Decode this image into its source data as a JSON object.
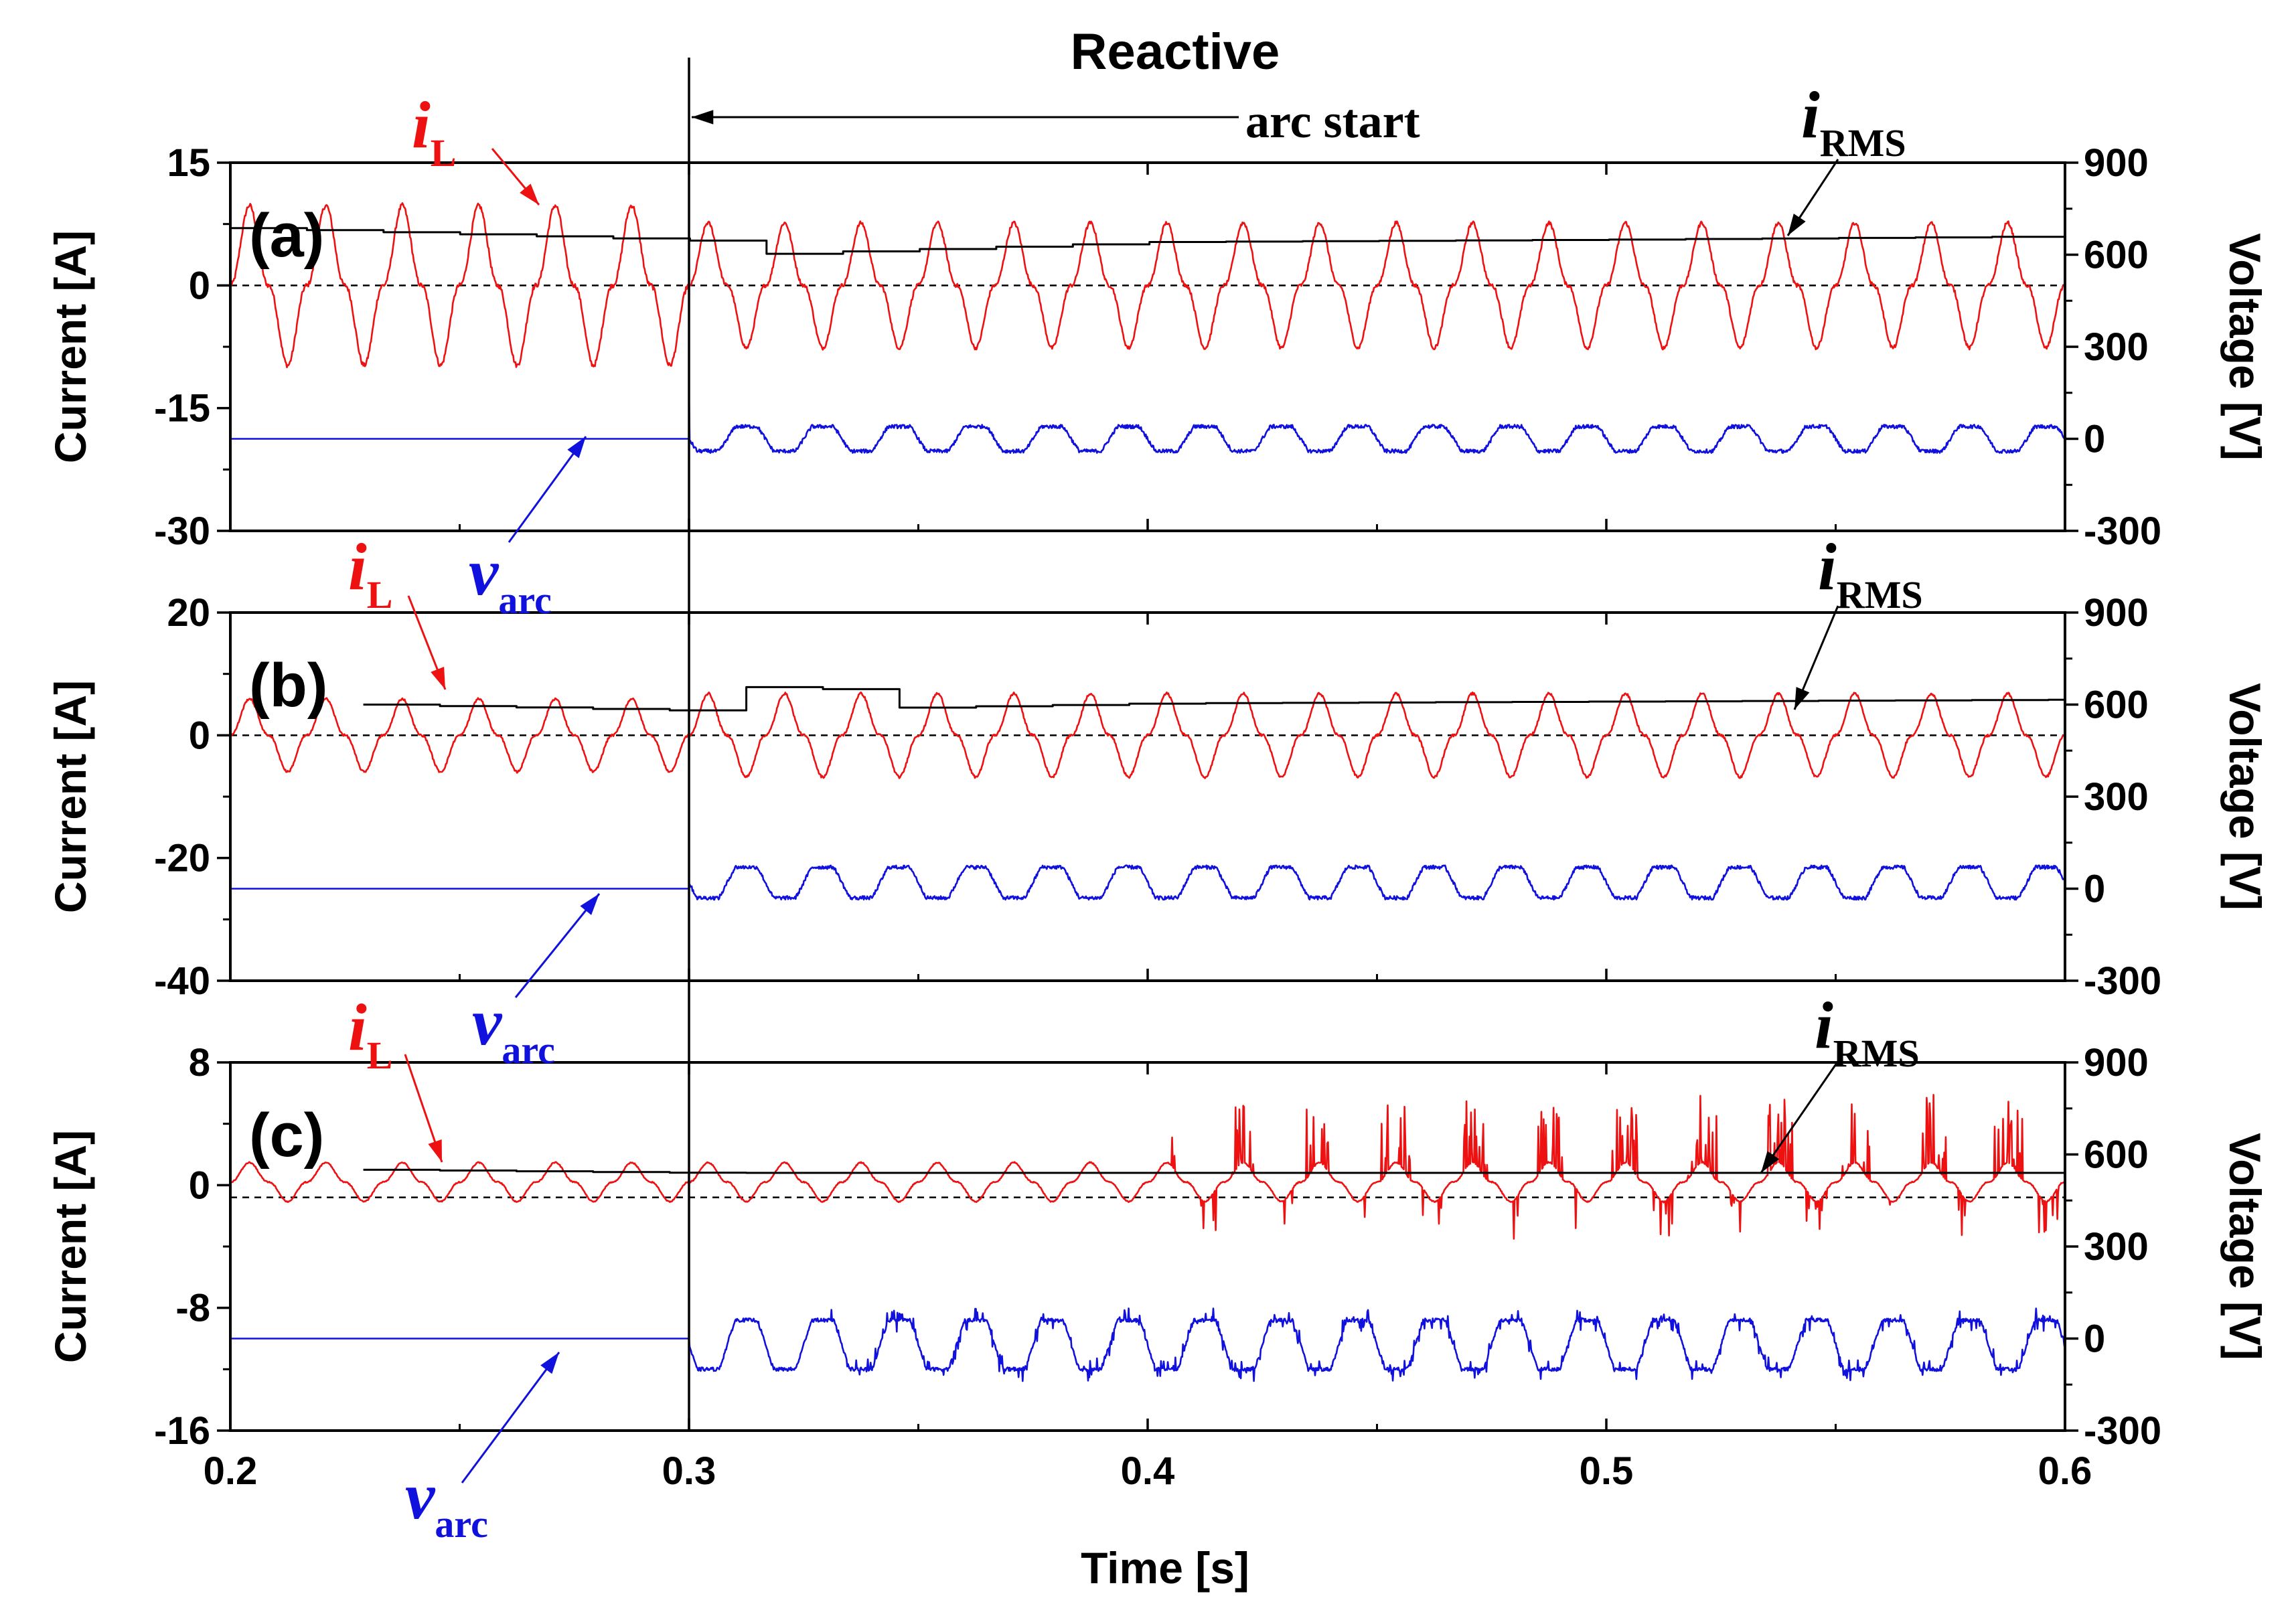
{
  "figure": {
    "title": "Reactive",
    "arc_start_label": "arc start",
    "x_axis_label": "Time [s]",
    "left_axis_label": "Current [A]",
    "right_axis_label": "Voltage [V]",
    "signal_labels": {
      "iL": {
        "main": "i",
        "sub": "L",
        "color": "#ee1111"
      },
      "iRMS": {
        "main": "i",
        "sub": "RMS",
        "color": "#000000"
      },
      "varc": {
        "main": "v",
        "sub": "arc",
        "color": "#1111dd"
      }
    }
  },
  "chart_data": [
    {
      "type": "line",
      "panel": "(a)",
      "x_range": [
        0.2,
        0.6
      ],
      "x_ticks": [
        "0.2",
        "0.3",
        "0.4",
        "0.5",
        "0.6"
      ],
      "y_left_range": [
        -30,
        15
      ],
      "y_left_ticks": [
        "15",
        "0",
        "-15",
        "-30"
      ],
      "y_right_range": [
        -300,
        900
      ],
      "y_right_ticks": [
        "900",
        "600",
        "300",
        "0",
        "-300"
      ],
      "zero_line_current": 0,
      "arc_start_time": 0.3,
      "series": [
        {
          "key": "iL",
          "axis": "left",
          "color": "#ee1111",
          "frequency_hz": 60,
          "amplitude_before": 11.5,
          "amplitude_after": 9,
          "phase_ref_time": 0.2,
          "start_time": 0.2
        },
        {
          "key": "iRMS",
          "axis": "left",
          "color": "#000000",
          "step_period": 0.0167,
          "x": [
            0.2,
            0.3,
            0.313,
            0.4,
            0.5,
            0.6
          ],
          "values": [
            7.0,
            5.5,
            3.8,
            5.3,
            5.6,
            6.0
          ],
          "start_time": 0.2
        },
        {
          "key": "varc",
          "axis": "right",
          "color": "#1111dd",
          "value_before": 0,
          "frequency_hz": 60,
          "amplitude_after": 40,
          "offset_after": 0,
          "spike_at_arc": 150,
          "phase_ref_time": 0.3
        }
      ]
    },
    {
      "type": "line",
      "panel": "(b)",
      "x_range": [
        0.2,
        0.6
      ],
      "x_ticks": [
        "0.2",
        "0.3",
        "0.4",
        "0.5",
        "0.6"
      ],
      "y_left_range": [
        -40,
        20
      ],
      "y_left_ticks": [
        "20",
        "0",
        "-20",
        "-40"
      ],
      "y_right_range": [
        -300,
        900
      ],
      "y_right_ticks": [
        "900",
        "600",
        "300",
        "0",
        "-300"
      ],
      "zero_line_current": 0,
      "arc_start_time": 0.3,
      "series": [
        {
          "key": "iL",
          "axis": "left",
          "color": "#ee1111",
          "frequency_hz": 60,
          "amplitude_before": 7,
          "amplitude_after": 8,
          "phase_ref_time": 0.2,
          "start_time": 0.2
        },
        {
          "key": "iRMS",
          "axis": "left",
          "color": "#000000",
          "step_period": 0.0167,
          "x": [
            0.229,
            0.3,
            0.313,
            0.33,
            0.345,
            0.4,
            0.5,
            0.6
          ],
          "values": [
            5.0,
            4.0,
            8.0,
            7.5,
            4.5,
            5.2,
            5.5,
            5.8
          ],
          "start_time": 0.229
        },
        {
          "key": "varc",
          "axis": "right",
          "color": "#1111dd",
          "value_before": 0,
          "frequency_hz": 60,
          "amplitude_after": 50,
          "offset_after": 20,
          "spike_at_arc": 0,
          "phase_ref_time": 0.3
        }
      ]
    },
    {
      "type": "line",
      "panel": "(c)",
      "x_range": [
        0.2,
        0.6
      ],
      "x_ticks": [
        "0.2",
        "0.3",
        "0.4",
        "0.5",
        "0.6"
      ],
      "y_left_range": [
        -16,
        8
      ],
      "y_left_ticks": [
        "8",
        "0",
        "-8",
        "-16"
      ],
      "y_right_range": [
        -300,
        900
      ],
      "y_right_ticks": [
        "900",
        "600",
        "300",
        "0",
        "-300"
      ],
      "zero_line_current": -0.8,
      "arc_start_time": 0.3,
      "series": [
        {
          "key": "iL",
          "axis": "left",
          "color": "#ee1111",
          "frequency_hz": 60,
          "amplitude_before": 1.5,
          "amplitude_after": 1.5,
          "offset": 0.2,
          "spikes_after_time": 0.405,
          "spike_amplitude": 4.5,
          "phase_ref_time": 0.2,
          "start_time": 0.2
        },
        {
          "key": "iRMS",
          "axis": "left",
          "color": "#000000",
          "step_period": 0.0167,
          "x": [
            0.229,
            0.3,
            0.6
          ],
          "values": [
            1.0,
            0.8,
            0.8
          ],
          "start_time": 0.229
        },
        {
          "key": "varc",
          "axis": "right",
          "color": "#1111dd",
          "value_before": 0,
          "frequency_hz": 60,
          "amplitude_after": 80,
          "offset_after": -20,
          "spikes_after_time": 0.33,
          "spike_amplitude": 70,
          "phase_ref_time": 0.3
        }
      ]
    }
  ]
}
